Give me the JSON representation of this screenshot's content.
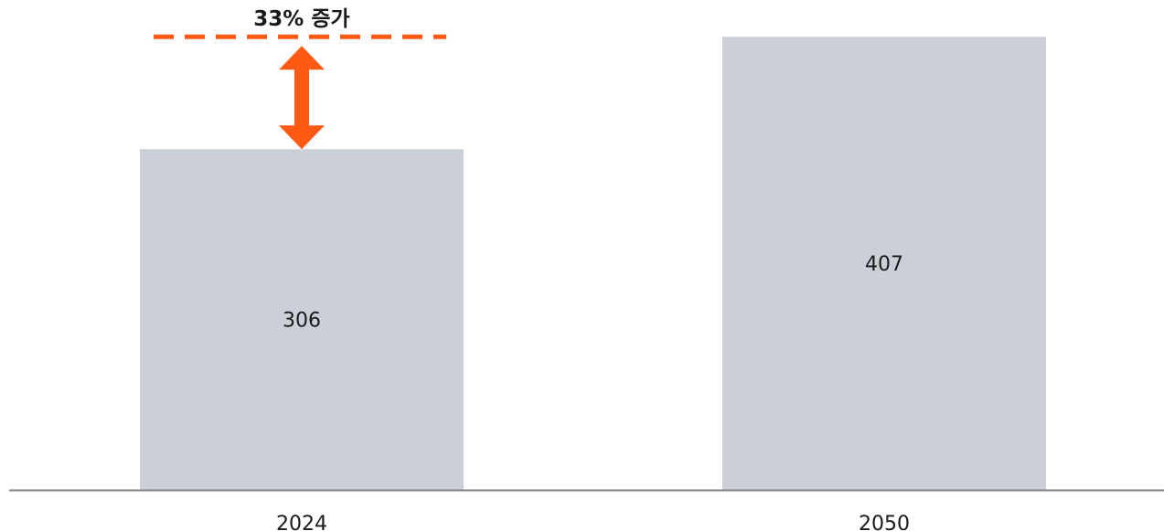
{
  "chart_data": {
    "type": "bar",
    "categories": [
      "2024",
      "2050"
    ],
    "values": [
      306,
      407
    ],
    "value_labels": [
      "306",
      "407"
    ],
    "title": "",
    "xlabel": "",
    "ylabel": "",
    "ylim": [
      0,
      440
    ],
    "grid": false,
    "annotation": {
      "text": "33% 증가",
      "from_value": 306,
      "to_value": 407
    },
    "colors": {
      "bar": "#cbd0d8",
      "axis": "#7f7f7f",
      "annotation": "#ff5a14",
      "text": "#1a1a1a"
    }
  }
}
